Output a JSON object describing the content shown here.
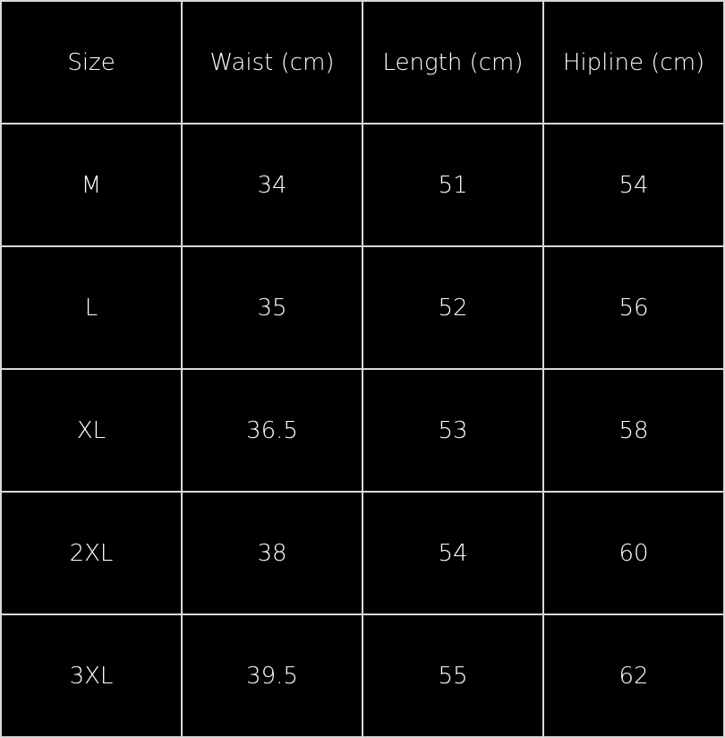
{
  "headers": [
    "Size",
    "Waist (cm)",
    "Length (cm)",
    "Hipline (cm)"
  ],
  "rows": [
    [
      "M",
      "34",
      "51",
      "54"
    ],
    [
      "L",
      "35",
      "52",
      "56"
    ],
    [
      "XL",
      "36.5",
      "53",
      "58"
    ],
    [
      "2XL",
      "38",
      "54",
      "60"
    ],
    [
      "3XL",
      "39.5",
      "55",
      "62"
    ]
  ],
  "colors": {
    "background": "#000000",
    "text": "#ffffff",
    "grid": "#d9d9d9"
  }
}
